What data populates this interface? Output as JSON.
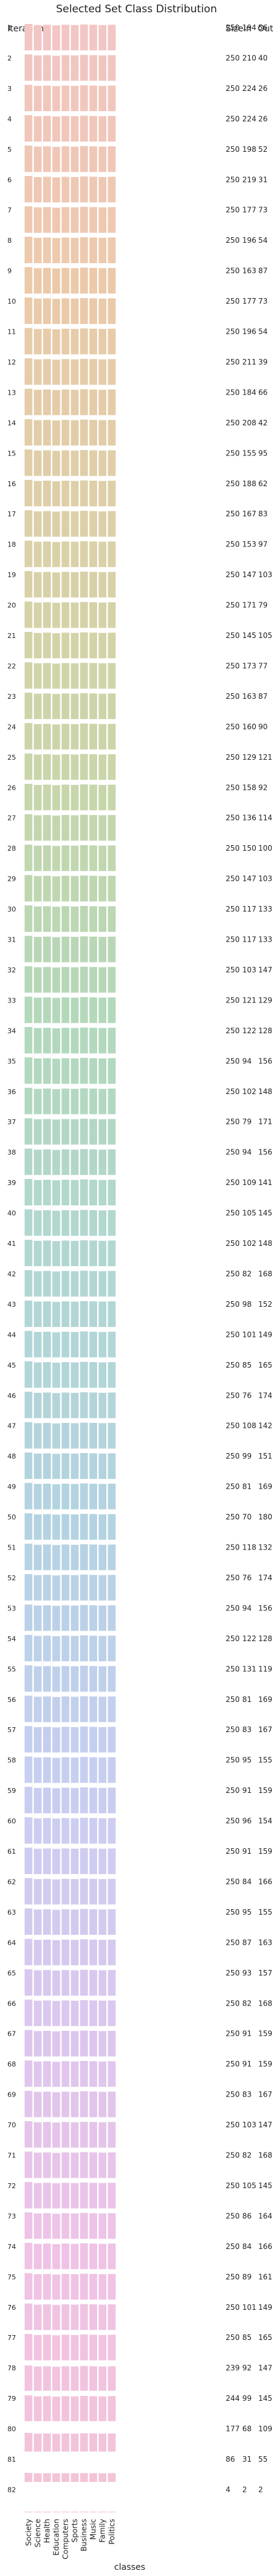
{
  "chart_data": {
    "type": "bar",
    "title": "Selected Set Class Distribution",
    "row_header": "Iteration",
    "column_headers": {
      "size": "Size",
      "in": "In",
      "out": "Out"
    },
    "xlabel": "classes",
    "categories": [
      "Society",
      "Science",
      "Health",
      "Education",
      "Computers",
      "Sports",
      "Business",
      "Music",
      "Family",
      "Politics"
    ],
    "rows": [
      {
        "iteration": "1",
        "size": 250,
        "in": 194,
        "out": 56
      },
      {
        "iteration": "2",
        "size": 250,
        "in": 210,
        "out": 40
      },
      {
        "iteration": "3",
        "size": 250,
        "in": 224,
        "out": 26
      },
      {
        "iteration": "4",
        "size": 250,
        "in": 224,
        "out": 26
      },
      {
        "iteration": "5",
        "size": 250,
        "in": 198,
        "out": 52
      },
      {
        "iteration": "6",
        "size": 250,
        "in": 219,
        "out": 31
      },
      {
        "iteration": "7",
        "size": 250,
        "in": 177,
        "out": 73
      },
      {
        "iteration": "8",
        "size": 250,
        "in": 196,
        "out": 54
      },
      {
        "iteration": "9",
        "size": 250,
        "in": 163,
        "out": 87
      },
      {
        "iteration": "10",
        "size": 250,
        "in": 177,
        "out": 73
      },
      {
        "iteration": "11",
        "size": 250,
        "in": 196,
        "out": 54
      },
      {
        "iteration": "12",
        "size": 250,
        "in": 211,
        "out": 39
      },
      {
        "iteration": "13",
        "size": 250,
        "in": 184,
        "out": 66
      },
      {
        "iteration": "14",
        "size": 250,
        "in": 208,
        "out": 42
      },
      {
        "iteration": "15",
        "size": 250,
        "in": 155,
        "out": 95
      },
      {
        "iteration": "16",
        "size": 250,
        "in": 188,
        "out": 62
      },
      {
        "iteration": "17",
        "size": 250,
        "in": 167,
        "out": 83
      },
      {
        "iteration": "18",
        "size": 250,
        "in": 153,
        "out": 97
      },
      {
        "iteration": "19",
        "size": 250,
        "in": 147,
        "out": 103
      },
      {
        "iteration": "20",
        "size": 250,
        "in": 171,
        "out": 79
      },
      {
        "iteration": "21",
        "size": 250,
        "in": 145,
        "out": 105
      },
      {
        "iteration": "22",
        "size": 250,
        "in": 173,
        "out": 77
      },
      {
        "iteration": "23",
        "size": 250,
        "in": 163,
        "out": 87
      },
      {
        "iteration": "24",
        "size": 250,
        "in": 160,
        "out": 90
      },
      {
        "iteration": "25",
        "size": 250,
        "in": 129,
        "out": 121
      },
      {
        "iteration": "26",
        "size": 250,
        "in": 158,
        "out": 92
      },
      {
        "iteration": "27",
        "size": 250,
        "in": 136,
        "out": 114
      },
      {
        "iteration": "28",
        "size": 250,
        "in": 150,
        "out": 100
      },
      {
        "iteration": "29",
        "size": 250,
        "in": 147,
        "out": 103
      },
      {
        "iteration": "30",
        "size": 250,
        "in": 117,
        "out": 133
      },
      {
        "iteration": "31",
        "size": 250,
        "in": 117,
        "out": 133
      },
      {
        "iteration": "32",
        "size": 250,
        "in": 103,
        "out": 147
      },
      {
        "iteration": "33",
        "size": 250,
        "in": 121,
        "out": 129
      },
      {
        "iteration": "34",
        "size": 250,
        "in": 122,
        "out": 128
      },
      {
        "iteration": "35",
        "size": 250,
        "in": 94,
        "out": 156
      },
      {
        "iteration": "36",
        "size": 250,
        "in": 102,
        "out": 148
      },
      {
        "iteration": "37",
        "size": 250,
        "in": 79,
        "out": 171
      },
      {
        "iteration": "38",
        "size": 250,
        "in": 94,
        "out": 156
      },
      {
        "iteration": "39",
        "size": 250,
        "in": 109,
        "out": 141
      },
      {
        "iteration": "40",
        "size": 250,
        "in": 105,
        "out": 145
      },
      {
        "iteration": "41",
        "size": 250,
        "in": 102,
        "out": 148
      },
      {
        "iteration": "42",
        "size": 250,
        "in": 82,
        "out": 168
      },
      {
        "iteration": "43",
        "size": 250,
        "in": 98,
        "out": 152
      },
      {
        "iteration": "44",
        "size": 250,
        "in": 101,
        "out": 149
      },
      {
        "iteration": "45",
        "size": 250,
        "in": 85,
        "out": 165
      },
      {
        "iteration": "46",
        "size": 250,
        "in": 76,
        "out": 174
      },
      {
        "iteration": "47",
        "size": 250,
        "in": 108,
        "out": 142
      },
      {
        "iteration": "48",
        "size": 250,
        "in": 99,
        "out": 151
      },
      {
        "iteration": "49",
        "size": 250,
        "in": 81,
        "out": 169
      },
      {
        "iteration": "50",
        "size": 250,
        "in": 70,
        "out": 180
      },
      {
        "iteration": "51",
        "size": 250,
        "in": 118,
        "out": 132
      },
      {
        "iteration": "52",
        "size": 250,
        "in": 76,
        "out": 174
      },
      {
        "iteration": "53",
        "size": 250,
        "in": 94,
        "out": 156
      },
      {
        "iteration": "54",
        "size": 250,
        "in": 122,
        "out": 128
      },
      {
        "iteration": "55",
        "size": 250,
        "in": 131,
        "out": 119
      },
      {
        "iteration": "56",
        "size": 250,
        "in": 81,
        "out": 169
      },
      {
        "iteration": "57",
        "size": 250,
        "in": 83,
        "out": 167
      },
      {
        "iteration": "58",
        "size": 250,
        "in": 95,
        "out": 155
      },
      {
        "iteration": "59",
        "size": 250,
        "in": 91,
        "out": 159
      },
      {
        "iteration": "60",
        "size": 250,
        "in": 96,
        "out": 154
      },
      {
        "iteration": "61",
        "size": 250,
        "in": 91,
        "out": 159
      },
      {
        "iteration": "62",
        "size": 250,
        "in": 84,
        "out": 166
      },
      {
        "iteration": "63",
        "size": 250,
        "in": 95,
        "out": 155
      },
      {
        "iteration": "64",
        "size": 250,
        "in": 87,
        "out": 163
      },
      {
        "iteration": "65",
        "size": 250,
        "in": 93,
        "out": 157
      },
      {
        "iteration": "66",
        "size": 250,
        "in": 82,
        "out": 168
      },
      {
        "iteration": "67",
        "size": 250,
        "in": 91,
        "out": 159
      },
      {
        "iteration": "68",
        "size": 250,
        "in": 91,
        "out": 159
      },
      {
        "iteration": "69",
        "size": 250,
        "in": 83,
        "out": 167
      },
      {
        "iteration": "70",
        "size": 250,
        "in": 103,
        "out": 147
      },
      {
        "iteration": "71",
        "size": 250,
        "in": 82,
        "out": 168
      },
      {
        "iteration": "72",
        "size": 250,
        "in": 105,
        "out": 145
      },
      {
        "iteration": "73",
        "size": 250,
        "in": 86,
        "out": 164
      },
      {
        "iteration": "74",
        "size": 250,
        "in": 84,
        "out": 166
      },
      {
        "iteration": "75",
        "size": 250,
        "in": 89,
        "out": 161
      },
      {
        "iteration": "76",
        "size": 250,
        "in": 101,
        "out": 149
      },
      {
        "iteration": "77",
        "size": 250,
        "in": 85,
        "out": 165
      },
      {
        "iteration": "78",
        "size": 239,
        "in": 92,
        "out": 147
      },
      {
        "iteration": "79",
        "size": 244,
        "in": 99,
        "out": 145
      },
      {
        "iteration": "80",
        "size": 177,
        "in": 68,
        "out": 109
      },
      {
        "iteration": "81",
        "size": 86,
        "in": 31,
        "out": 55
      },
      {
        "iteration": "82",
        "size": 4,
        "in": 2,
        "out": 2
      }
    ],
    "row_colors": [
      "#f2c6c4",
      "#ecc9a9",
      "#dcd0a8",
      "#c9d6a9",
      "#b2d8bb",
      "#b2d7d2",
      "#b3d3e1",
      "#c6cff0",
      "#dac7ef",
      "#efc2e6",
      "#f3c4d6"
    ],
    "bar_profile": [
      1.0,
      0.96,
      0.97,
      0.95,
      0.97,
      0.96,
      0.98,
      0.97,
      0.96,
      0.97
    ],
    "grid": false,
    "legend": "none"
  }
}
